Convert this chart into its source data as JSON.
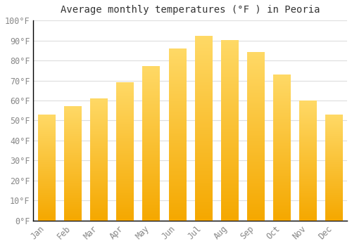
{
  "title": "Average monthly temperatures (°F ) in Peoria",
  "months": [
    "Jan",
    "Feb",
    "Mar",
    "Apr",
    "May",
    "Jun",
    "Jul",
    "Aug",
    "Sep",
    "Oct",
    "Nov",
    "Dec"
  ],
  "values": [
    53,
    57,
    61,
    69,
    77,
    86,
    92,
    90,
    84,
    73,
    60,
    53
  ],
  "bar_color_bottom": "#F5A800",
  "bar_color_top": "#FFD966",
  "ylim": [
    0,
    100
  ],
  "yticks": [
    0,
    10,
    20,
    30,
    40,
    50,
    60,
    70,
    80,
    90,
    100
  ],
  "ylabel_suffix": "°F",
  "background_color": "#FFFFFF",
  "grid_color": "#DDDDDD",
  "title_fontsize": 10,
  "tick_fontsize": 8.5,
  "tick_color": "#888888"
}
